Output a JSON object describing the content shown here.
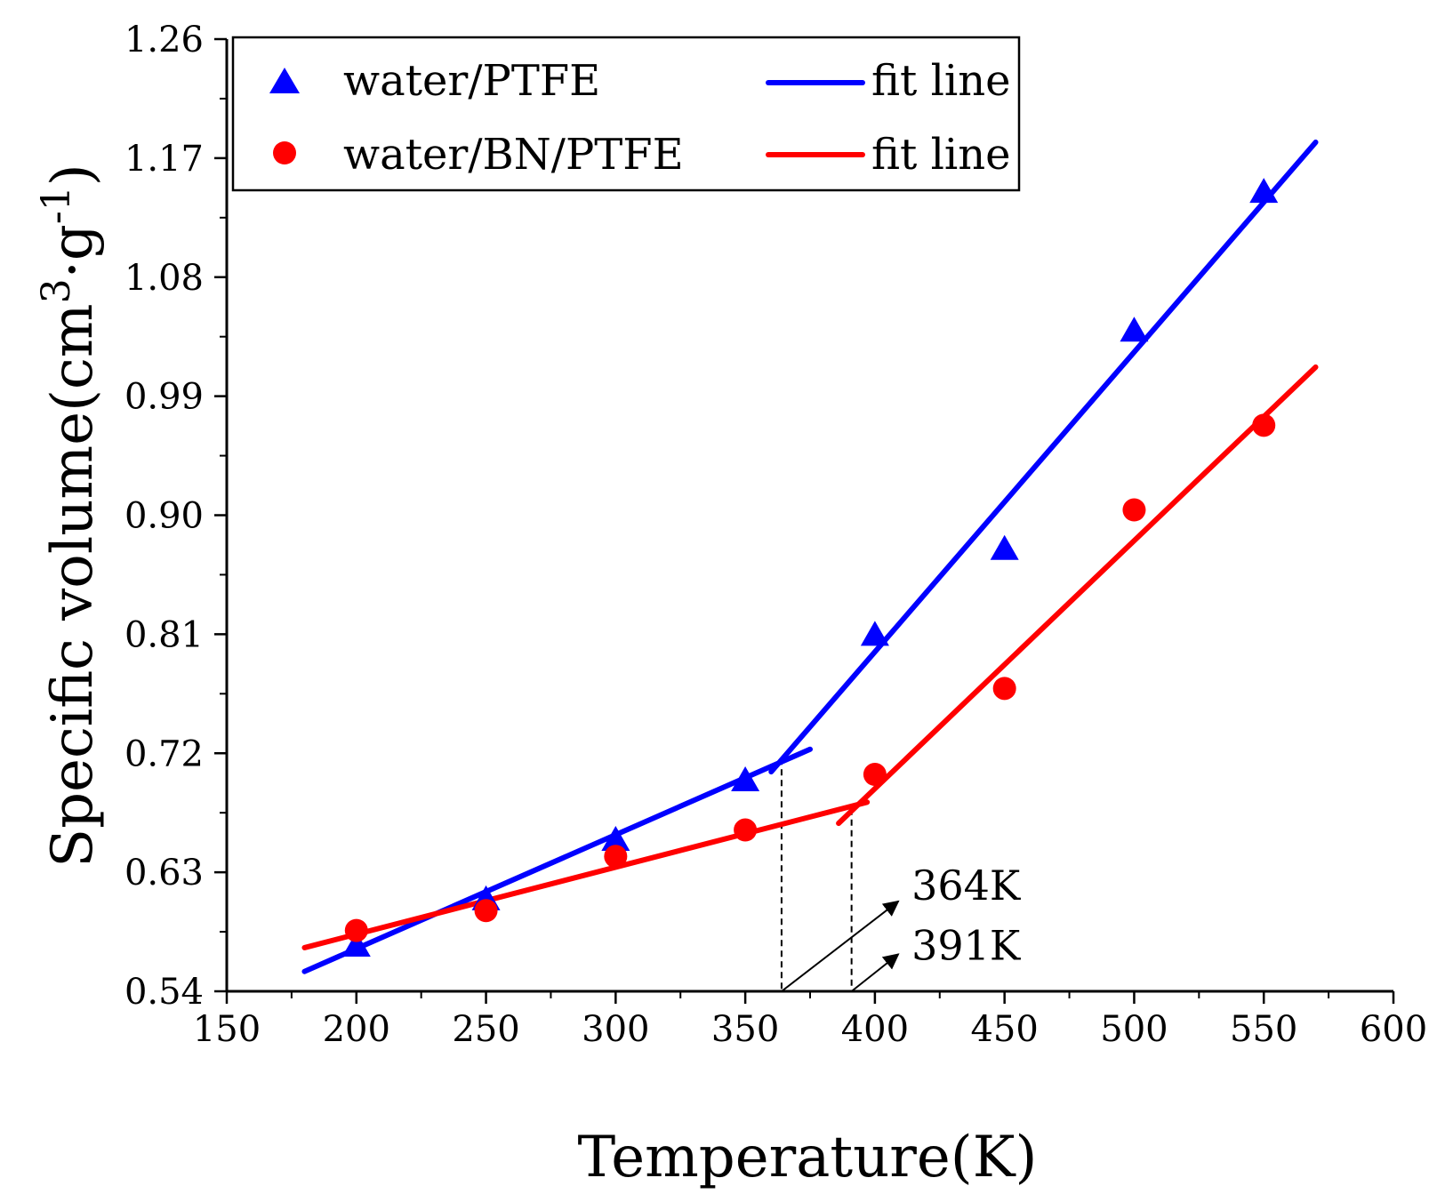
{
  "chart_data": {
    "type": "scatter",
    "xlabel": "Temperature(K)",
    "ylabel": {
      "prefix": "Specific volume(cm",
      "sup1": "3",
      "mid": "·g",
      "sup2": "-1",
      "suffix": ")"
    },
    "xlim": [
      150,
      600
    ],
    "ylim": [
      0.54,
      1.26
    ],
    "xticks": [
      "150",
      "200",
      "250",
      "300",
      "350",
      "400",
      "450",
      "500",
      "550",
      "600"
    ],
    "yticks": [
      "0.54",
      "0.63",
      "0.72",
      "0.81",
      "0.90",
      "0.99",
      "1.08",
      "1.17",
      "1.26"
    ],
    "series": [
      {
        "name": "water/PTFE",
        "marker": "triangle",
        "color": "#0000ff",
        "points": [
          [
            200,
            0.575
          ],
          [
            250,
            0.61
          ],
          [
            300,
            0.655
          ],
          [
            350,
            0.7
          ],
          [
            400,
            0.81
          ],
          [
            450,
            0.875
          ],
          [
            500,
            1.04
          ],
          [
            550,
            1.145
          ]
        ]
      },
      {
        "name": "water/BN/PTFE",
        "marker": "circle",
        "color": "#ff0000",
        "points": [
          [
            200,
            0.586
          ],
          [
            250,
            0.601
          ],
          [
            300,
            0.642
          ],
          [
            350,
            0.662
          ],
          [
            400,
            0.704
          ],
          [
            450,
            0.769
          ],
          [
            500,
            0.904
          ],
          [
            550,
            0.968
          ]
        ]
      }
    ],
    "fit_lines": [
      {
        "name": "fit line",
        "color": "#0000ff",
        "segments": [
          [
            [
              180,
              0.555
            ],
            [
              375,
              0.723
            ]
          ],
          [
            [
              360,
              0.706
            ],
            [
              570,
              1.182
            ]
          ]
        ]
      },
      {
        "name": "fit line",
        "color": "#ff0000",
        "segments": [
          [
            [
              180,
              0.573
            ],
            [
              397,
              0.683
            ]
          ],
          [
            [
              386,
              0.667
            ],
            [
              570,
              1.012
            ]
          ]
        ]
      }
    ],
    "annotations": [
      {
        "text": "364K",
        "x": 364,
        "y_top": 0.716,
        "arrow_from": [
          364,
          0.54
        ],
        "arrow_to": [
          409,
          0.608
        ]
      },
      {
        "text": "391K",
        "x": 391,
        "y_top": 0.678,
        "arrow_from": [
          391,
          0.54
        ],
        "arrow_to": [
          409,
          0.568
        ]
      }
    ],
    "legend": {
      "position": "top-left",
      "entries": [
        {
          "label": "water/PTFE",
          "marker": "triangle",
          "color": "#0000ff"
        },
        {
          "label": "fit line",
          "marker": "line",
          "color": "#0000ff"
        },
        {
          "label": "water/BN/PTFE",
          "marker": "circle",
          "color": "#ff0000"
        },
        {
          "label": "fit line",
          "marker": "line",
          "color": "#ff0000"
        }
      ]
    }
  }
}
